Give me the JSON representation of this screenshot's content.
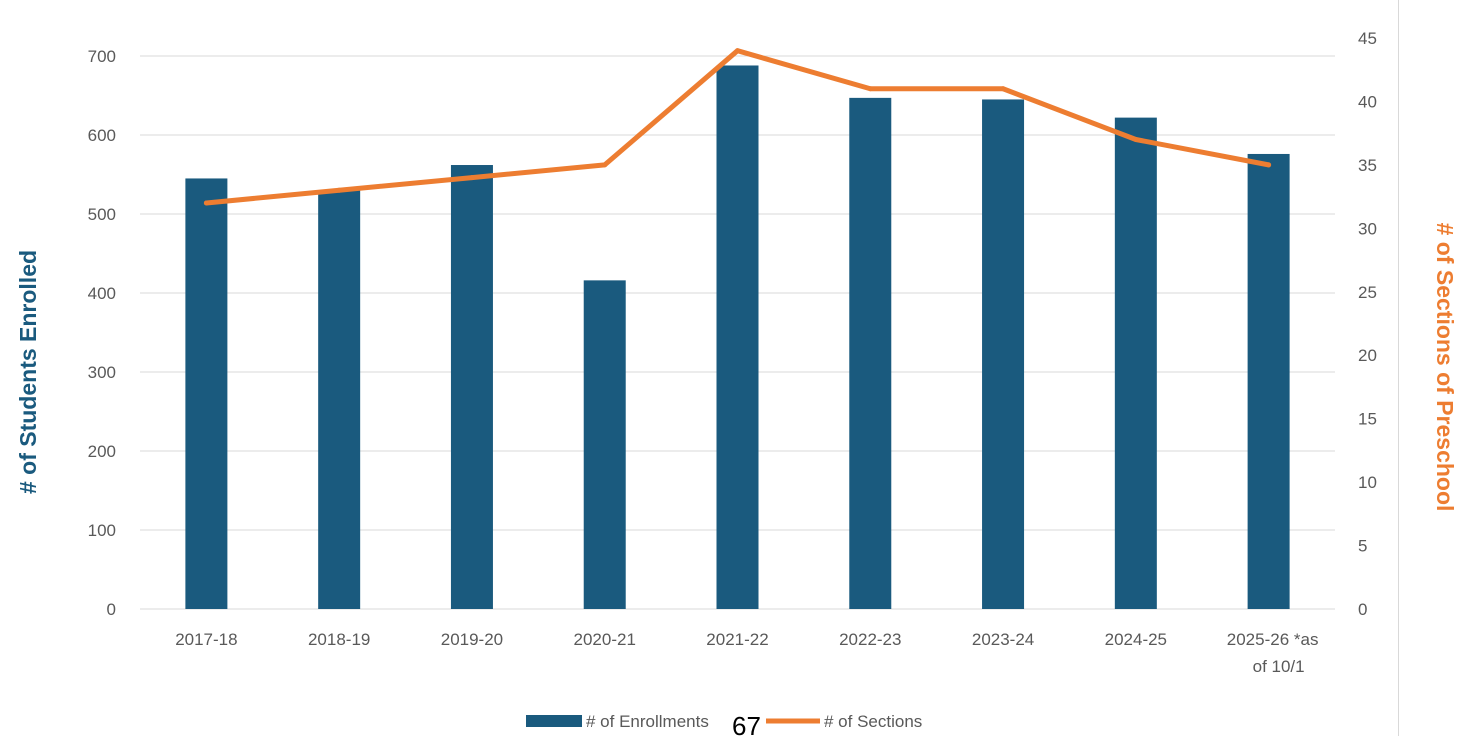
{
  "chart_data": {
    "type": "bar",
    "categories": [
      "2017-18",
      "2018-19",
      "2019-20",
      "2020-21",
      "2021-22",
      "2022-23",
      "2023-24",
      "2024-25",
      "2025-26 *as of 10/1"
    ],
    "category_lines": [
      [
        "2017-18"
      ],
      [
        "2018-19"
      ],
      [
        "2019-20"
      ],
      [
        "2020-21"
      ],
      [
        "2021-22"
      ],
      [
        "2022-23"
      ],
      [
        "2023-24"
      ],
      [
        "2024-25"
      ],
      [
        "2025-26 *as",
        "of 10/1"
      ]
    ],
    "series": [
      {
        "name": "# of Enrollments",
        "type": "bar",
        "axis": "left",
        "color": "#1a5a7e",
        "values": [
          545,
          530,
          562,
          416,
          688,
          647,
          645,
          622,
          576
        ]
      },
      {
        "name": "# of Sections",
        "type": "line",
        "axis": "right",
        "color": "#ed7d31",
        "values": [
          32,
          33,
          34,
          35,
          44,
          41,
          41,
          37,
          35
        ]
      }
    ],
    "ylabel_left": "# of Students Enrolled",
    "ylabel_right": "# of Sections of Preschool",
    "ylim_left": [
      0,
      700
    ],
    "ylim_right": [
      0,
      45
    ],
    "yticks_left": [
      0,
      100,
      200,
      300,
      400,
      500,
      600,
      700
    ],
    "yticks_right": [
      0,
      5,
      10,
      15,
      20,
      25,
      30,
      35,
      40,
      45
    ],
    "grid": true,
    "legend_position": "bottom"
  },
  "legend": {
    "enrollments_label": "# of Enrollments",
    "sections_label": "# of Sections"
  },
  "page_number": "67"
}
